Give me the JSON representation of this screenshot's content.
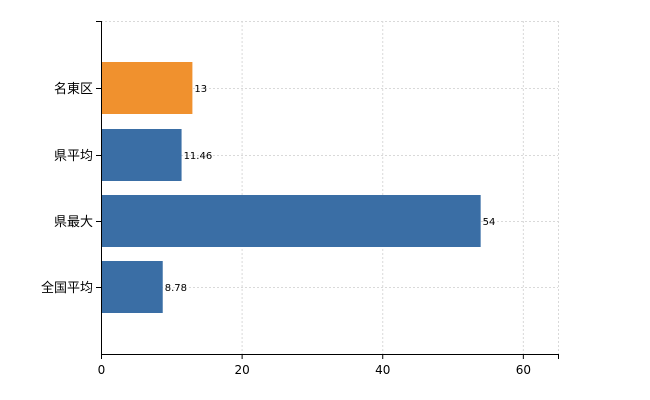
{
  "chart_data": {
    "type": "bar",
    "orientation": "horizontal",
    "categories": [
      "名東区",
      "県平均",
      "県最大",
      "全国平均"
    ],
    "values": [
      13,
      11.46,
      54,
      8.78
    ],
    "value_labels": [
      "13",
      "11.46",
      "54",
      "8.78"
    ],
    "bar_colors": [
      "#f0912e",
      "#3a6ea5",
      "#3a6ea5",
      "#3a6ea5"
    ],
    "xlim": [
      0,
      65
    ],
    "xticks": [
      0,
      20,
      40,
      60
    ],
    "xtick_labels": [
      "0",
      "20",
      "40",
      "60"
    ],
    "grid": true,
    "title": "",
    "xlabel": "",
    "ylabel": ""
  }
}
